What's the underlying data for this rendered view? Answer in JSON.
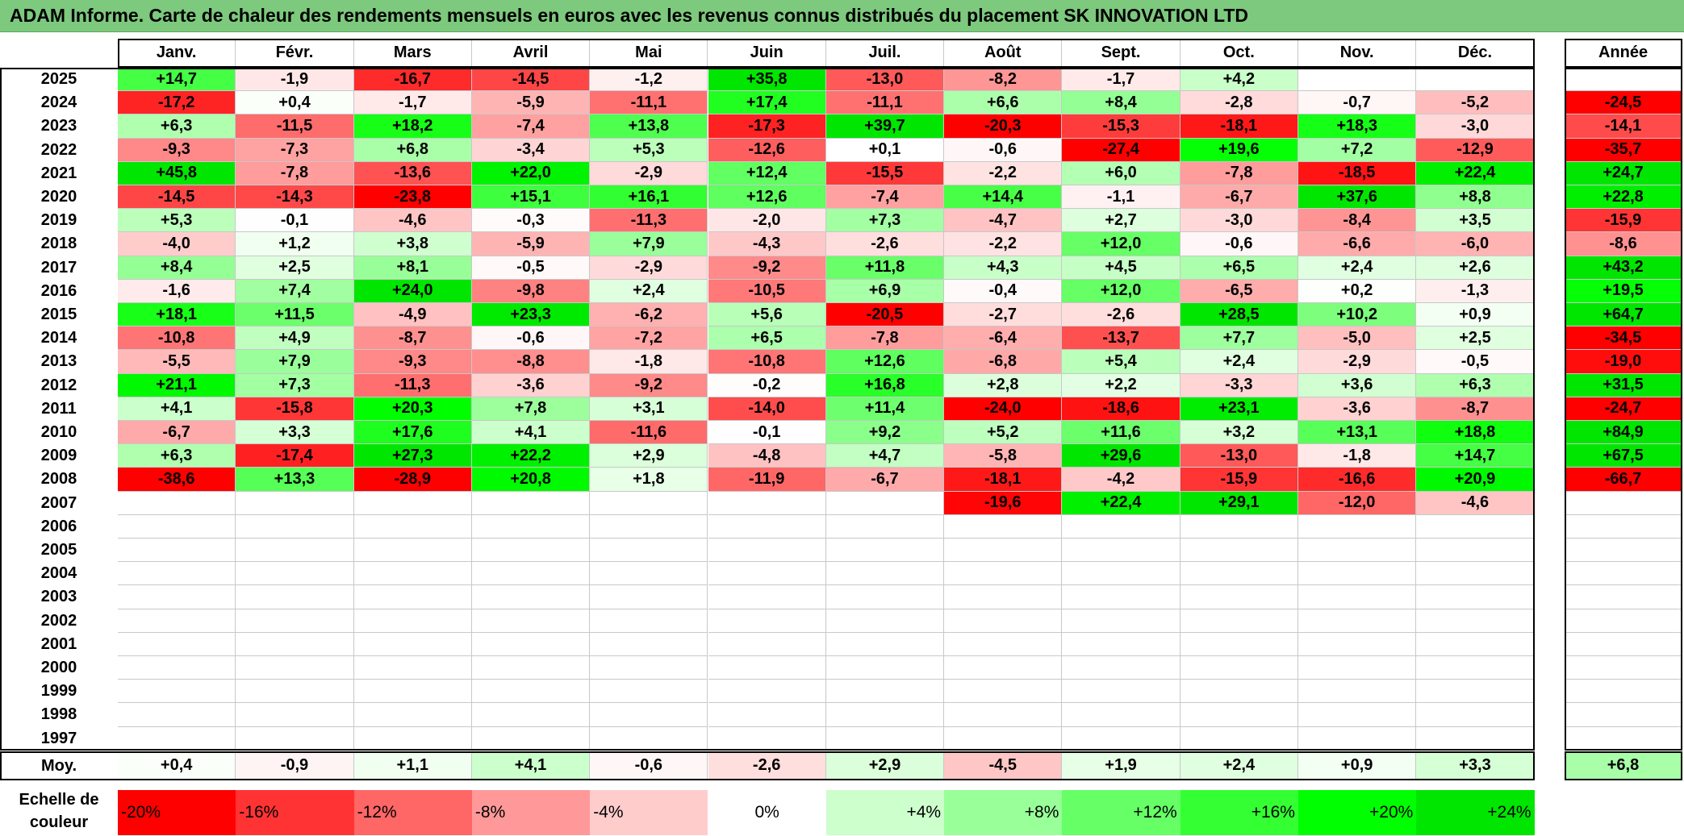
{
  "title": "ADAM Informe. Carte de chaleur des rendements mensuels en euros avec les revenus connus distribués du placement SK INNOVATION LTD",
  "chart_data": {
    "type": "heatmap",
    "columns": [
      "Janv.",
      "Févr.",
      "Mars",
      "Avril",
      "Mai",
      "Juin",
      "Juil.",
      "Août",
      "Sept.",
      "Oct.",
      "Nov.",
      "Déc."
    ],
    "year_header": "Année",
    "rows": [
      {
        "year": "2025",
        "values": [
          "+14,7",
          "-1,9",
          "-16,7",
          "-14,5",
          "-1,2",
          "+35,8",
          "-13,0",
          "-8,2",
          "-1,7",
          "+4,2",
          "",
          ""
        ],
        "annual": ""
      },
      {
        "year": "2024",
        "values": [
          "-17,2",
          "+0,4",
          "-1,7",
          "-5,9",
          "-11,1",
          "+17,4",
          "-11,1",
          "+6,6",
          "+8,4",
          "-2,8",
          "-0,7",
          "-5,2"
        ],
        "annual": "-24,5"
      },
      {
        "year": "2023",
        "values": [
          "+6,3",
          "-11,5",
          "+18,2",
          "-7,4",
          "+13,8",
          "-17,3",
          "+39,7",
          "-20,3",
          "-15,3",
          "-18,1",
          "+18,3",
          "-3,0"
        ],
        "annual": "-14,1"
      },
      {
        "year": "2022",
        "values": [
          "-9,3",
          "-7,3",
          "+6,8",
          "-3,4",
          "+5,3",
          "-12,6",
          "+0,1",
          "-0,6",
          "-27,4",
          "+19,6",
          "+7,2",
          "-12,9"
        ],
        "annual": "-35,7"
      },
      {
        "year": "2021",
        "values": [
          "+45,8",
          "-7,8",
          "-13,6",
          "+22,0",
          "-2,9",
          "+12,4",
          "-15,5",
          "-2,2",
          "+6,0",
          "-7,8",
          "-18,5",
          "+22,4"
        ],
        "annual": "+24,7"
      },
      {
        "year": "2020",
        "values": [
          "-14,5",
          "-14,3",
          "-23,8",
          "+15,1",
          "+16,1",
          "+12,6",
          "-7,4",
          "+14,4",
          "-1,1",
          "-6,7",
          "+37,6",
          "+8,8"
        ],
        "annual": "+22,8"
      },
      {
        "year": "2019",
        "values": [
          "+5,3",
          "-0,1",
          "-4,6",
          "-0,3",
          "-11,3",
          "-2,0",
          "+7,3",
          "-4,7",
          "+2,7",
          "-3,0",
          "-8,4",
          "+3,5"
        ],
        "annual": "-15,9"
      },
      {
        "year": "2018",
        "values": [
          "-4,0",
          "+1,2",
          "+3,8",
          "-5,9",
          "+7,9",
          "-4,3",
          "-2,6",
          "-2,2",
          "+12,0",
          "-0,6",
          "-6,6",
          "-6,0"
        ],
        "annual": "-8,6"
      },
      {
        "year": "2017",
        "values": [
          "+8,4",
          "+2,5",
          "+8,1",
          "-0,5",
          "-2,9",
          "-9,2",
          "+11,8",
          "+4,3",
          "+4,5",
          "+6,5",
          "+2,4",
          "+2,6"
        ],
        "annual": "+43,2"
      },
      {
        "year": "2016",
        "values": [
          "-1,6",
          "+7,4",
          "+24,0",
          "-9,8",
          "+2,4",
          "-10,5",
          "+6,9",
          "-0,4",
          "+12,0",
          "-6,5",
          "+0,2",
          "-1,3"
        ],
        "annual": "+19,5"
      },
      {
        "year": "2015",
        "values": [
          "+18,1",
          "+11,5",
          "-4,9",
          "+23,3",
          "-6,2",
          "+5,6",
          "-20,5",
          "-2,7",
          "-2,6",
          "+28,5",
          "+10,2",
          "+0,9"
        ],
        "annual": "+64,7"
      },
      {
        "year": "2014",
        "values": [
          "-10,8",
          "+4,9",
          "-8,7",
          "-0,6",
          "-7,2",
          "+6,5",
          "-7,8",
          "-6,4",
          "-13,7",
          "+7,7",
          "-5,0",
          "+2,5"
        ],
        "annual": "-34,5"
      },
      {
        "year": "2013",
        "values": [
          "-5,5",
          "+7,9",
          "-9,3",
          "-8,8",
          "-1,8",
          "-10,8",
          "+12,6",
          "-6,8",
          "+5,4",
          "+2,4",
          "-2,9",
          "-0,5"
        ],
        "annual": "-19,0"
      },
      {
        "year": "2012",
        "values": [
          "+21,1",
          "+7,3",
          "-11,3",
          "-3,6",
          "-9,2",
          "-0,2",
          "+16,8",
          "+2,8",
          "+2,2",
          "-3,3",
          "+3,6",
          "+6,3"
        ],
        "annual": "+31,5"
      },
      {
        "year": "2011",
        "values": [
          "+4,1",
          "-15,8",
          "+20,3",
          "+7,8",
          "+3,1",
          "-14,0",
          "+11,4",
          "-24,0",
          "-18,6",
          "+23,1",
          "-3,6",
          "-8,7"
        ],
        "annual": "-24,7"
      },
      {
        "year": "2010",
        "values": [
          "-6,7",
          "+3,3",
          "+17,6",
          "+4,1",
          "-11,6",
          "-0,1",
          "+9,2",
          "+5,2",
          "+11,6",
          "+3,2",
          "+13,1",
          "+18,8"
        ],
        "annual": "+84,9"
      },
      {
        "year": "2009",
        "values": [
          "+6,3",
          "-17,4",
          "+27,3",
          "+22,2",
          "+2,9",
          "-4,8",
          "+4,7",
          "-5,8",
          "+29,6",
          "-13,0",
          "-1,8",
          "+14,7"
        ],
        "annual": "+67,5"
      },
      {
        "year": "2008",
        "values": [
          "-38,6",
          "+13,3",
          "-28,9",
          "+20,8",
          "+1,8",
          "-11,9",
          "-6,7",
          "-18,1",
          "-4,2",
          "-15,9",
          "-16,6",
          "+20,9"
        ],
        "annual": "-66,7"
      },
      {
        "year": "2007",
        "values": [
          "",
          "",
          "",
          "",
          "",
          "",
          "",
          "-19,6",
          "+22,4",
          "+29,1",
          "-12,0",
          "-4,6"
        ],
        "annual": ""
      },
      {
        "year": "2006",
        "values": [
          "",
          "",
          "",
          "",
          "",
          "",
          "",
          "",
          "",
          "",
          "",
          ""
        ],
        "annual": ""
      },
      {
        "year": "2005",
        "values": [
          "",
          "",
          "",
          "",
          "",
          "",
          "",
          "",
          "",
          "",
          "",
          ""
        ],
        "annual": ""
      },
      {
        "year": "2004",
        "values": [
          "",
          "",
          "",
          "",
          "",
          "",
          "",
          "",
          "",
          "",
          "",
          ""
        ],
        "annual": ""
      },
      {
        "year": "2003",
        "values": [
          "",
          "",
          "",
          "",
          "",
          "",
          "",
          "",
          "",
          "",
          "",
          ""
        ],
        "annual": ""
      },
      {
        "year": "2002",
        "values": [
          "",
          "",
          "",
          "",
          "",
          "",
          "",
          "",
          "",
          "",
          "",
          ""
        ],
        "annual": ""
      },
      {
        "year": "2001",
        "values": [
          "",
          "",
          "",
          "",
          "",
          "",
          "",
          "",
          "",
          "",
          "",
          ""
        ],
        "annual": ""
      },
      {
        "year": "2000",
        "values": [
          "",
          "",
          "",
          "",
          "",
          "",
          "",
          "",
          "",
          "",
          "",
          ""
        ],
        "annual": ""
      },
      {
        "year": "1999",
        "values": [
          "",
          "",
          "",
          "",
          "",
          "",
          "",
          "",
          "",
          "",
          "",
          ""
        ],
        "annual": ""
      },
      {
        "year": "1998",
        "values": [
          "",
          "",
          "",
          "",
          "",
          "",
          "",
          "",
          "",
          "",
          "",
          ""
        ],
        "annual": ""
      },
      {
        "year": "1997",
        "values": [
          "",
          "",
          "",
          "",
          "",
          "",
          "",
          "",
          "",
          "",
          "",
          ""
        ],
        "annual": ""
      }
    ],
    "average": {
      "label": "Moy.",
      "values": [
        "+0,4",
        "-0,9",
        "+1,1",
        "+4,1",
        "-0,6",
        "-2,6",
        "+2,9",
        "-4,5",
        "+1,9",
        "+2,4",
        "+0,9",
        "+3,3"
      ],
      "annual": "+6,8"
    },
    "scale": {
      "label": "Echelle de couleur",
      "stops": [
        {
          "label": "-20%",
          "value": -20,
          "color": "#ff0000"
        },
        {
          "label": "-16%",
          "value": -16,
          "color": "#ff3333"
        },
        {
          "label": "-12%",
          "value": -12,
          "color": "#ff6666"
        },
        {
          "label": "-8%",
          "value": -8,
          "color": "#ff9999"
        },
        {
          "label": "-4%",
          "value": -4,
          "color": "#ffcccc"
        },
        {
          "label": "0%",
          "value": 0,
          "color": "#ffffff"
        },
        {
          "label": "+4%",
          "value": 4,
          "color": "#ccffcc"
        },
        {
          "label": "+8%",
          "value": 8,
          "color": "#99ff99"
        },
        {
          "label": "+12%",
          "value": 12,
          "color": "#66ff66"
        },
        {
          "label": "+16%",
          "value": 16,
          "color": "#33ff33"
        },
        {
          "label": "+20%",
          "value": 20,
          "color": "#00ff00"
        },
        {
          "label": "+24%",
          "value": 24,
          "color": "#00e600"
        }
      ]
    }
  }
}
